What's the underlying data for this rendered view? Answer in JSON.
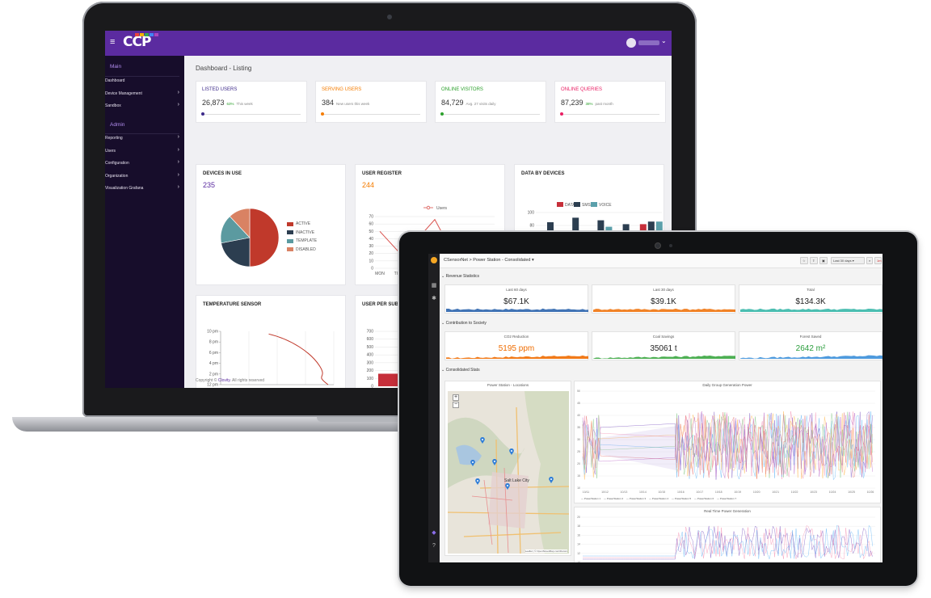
{
  "laptop": {
    "header": {
      "menu_icon": "hamburger-icon",
      "logo_text": "CCP",
      "logo_colors": [
        "#e8453c",
        "#f5b400",
        "#34a853",
        "#4285f4",
        "#ab47bc"
      ]
    },
    "sidebar": {
      "main_label": "Main",
      "admin_label": "Admin",
      "main_items": [
        {
          "label": "Dashboard",
          "chevron": false
        },
        {
          "label": "Device Management",
          "chevron": true
        },
        {
          "label": "Sandbox",
          "chevron": true
        }
      ],
      "admin_items": [
        {
          "label": "Reporting",
          "chevron": true
        },
        {
          "label": "Users",
          "chevron": true
        },
        {
          "label": "Configuration",
          "chevron": true
        },
        {
          "label": "Organization",
          "chevron": true
        },
        {
          "label": "Visualization Grafana",
          "chevron": true
        }
      ]
    },
    "page_title": "Dashboard - Listing",
    "kpis": [
      {
        "label": "LISTED USERS",
        "value": "26,873",
        "pct": "63%",
        "sub": "This week",
        "color": "#3d2a8a",
        "pct_color": "#2ca02c"
      },
      {
        "label": "SERVING USERS",
        "value": "384",
        "pct": "",
        "sub": "New users this week",
        "color": "#f57c00",
        "pct_color": "#f57c00"
      },
      {
        "label": "ONLINE VISITORS",
        "value": "84,729",
        "pct": "",
        "sub": "Avg. 27 visits daily",
        "color": "#2ca02c",
        "pct_color": "#2ca02c"
      },
      {
        "label": "ONLINE QUERIES",
        "value": "87,239",
        "pct": "38%",
        "sub": "past month",
        "color": "#e91e63",
        "pct_color": "#2ca02c"
      }
    ],
    "devices": {
      "title": "DEVICES IN USE",
      "value": "235",
      "value_color": "#5b2ba0",
      "chart_data": {
        "type": "pie",
        "labels": [
          "ACTIVE",
          "INACTIVE",
          "TEMPLATE",
          "DISABLED"
        ],
        "values": [
          50,
          22,
          16,
          12
        ],
        "colors": [
          "#c0392b",
          "#2c3e50",
          "#5b9aa0",
          "#d98263"
        ]
      }
    },
    "user_register": {
      "title": "USER REGISTER",
      "value": "244",
      "value_color": "#f57c00",
      "chart_data": {
        "type": "line",
        "series_name": "Users",
        "categories": [
          "MON",
          "TUE",
          "",
          "",
          "",
          "",
          ""
        ],
        "values": [
          50,
          23,
          38,
          66,
          20,
          10,
          40
        ],
        "ylim": [
          0,
          70
        ],
        "yticks": [
          "70",
          "60",
          "50",
          "40",
          "30",
          "20",
          "10",
          "0"
        ]
      }
    },
    "data_by_devices": {
      "title": "DATA BY DEVICES",
      "chart_data": {
        "type": "bar",
        "series": [
          {
            "name": "DATA",
            "color": "#c62f3a",
            "values": [
              40,
              28,
              65,
              52,
              82
            ]
          },
          {
            "name": "SMS",
            "color": "#2c3e50",
            "values": [
              85,
              92,
              88,
              82,
              86
            ]
          },
          {
            "name": "VOICE",
            "color": "#5ba0ab",
            "values": [
              22,
              65,
              78,
              40,
              86
            ]
          }
        ],
        "ylim": [
          0,
          100
        ],
        "yticks": [
          "100",
          "80",
          "60",
          "40",
          "20"
        ]
      }
    },
    "temperature": {
      "title": "TEMPERATURE SENSOR",
      "chart_data": {
        "type": "line",
        "yticks": [
          "10 pm",
          "8 pm",
          "6 pm",
          "4 pm",
          "2 pm",
          "12 pm"
        ],
        "xticks": [
          "0 °C",
          "10 °C",
          "20 °C",
          "30 °C",
          "40 °C"
        ],
        "color": "#c0392b",
        "values": [
          [
            17,
            9.5
          ],
          [
            25,
            8.5
          ],
          [
            32,
            6
          ],
          [
            35,
            3.5
          ],
          [
            33,
            2
          ],
          [
            38,
            0
          ]
        ]
      }
    },
    "user_suborg": {
      "title": "USER PER SUB-ORG",
      "chart_data": {
        "type": "bar",
        "categories": [
          "Clovity"
        ],
        "values": [
          160
        ],
        "ylim": [
          0,
          700
        ],
        "yticks": [
          "700",
          "600",
          "500",
          "400",
          "300",
          "200",
          "100",
          "0"
        ],
        "color": "#c62f3a"
      }
    },
    "footer": {
      "prefix": "Copyright ©",
      "company": "Clovity.",
      "suffix": "All rights reserved"
    }
  },
  "tablet": {
    "breadcrumb": "CSensorNet > Power Station - Consolidated ▾",
    "time_range": "Last 30 days ▾",
    "refresh": "1m",
    "rows": [
      {
        "title": "Revenue Statistics"
      },
      {
        "title": "Contribution to Society"
      },
      {
        "title": "Consolidated Stats"
      }
    ],
    "revenue": [
      {
        "title": "Last 60 days",
        "value": "$67.1K",
        "color": "#1f5ba8"
      },
      {
        "title": "Last 30 days",
        "value": "$39.1K",
        "color": "#ef6c00"
      },
      {
        "title": "Total",
        "value": "$134.3K",
        "color": "#2bb3a3"
      }
    ],
    "contribution": [
      {
        "title": "CO2 Reduction",
        "value": "5195 ppm",
        "color": "#ef6c00",
        "value_color": "#ef6c00"
      },
      {
        "title": "Coal Savings",
        "value": "35061 t",
        "color": "#3aa640",
        "value_color": "#222222"
      },
      {
        "title": "Forest Saved",
        "value": "2642 m²",
        "color": "#3b8fd9",
        "value_color": "#2a9d3c"
      }
    ],
    "map": {
      "title": "Power Station - Locations",
      "city": "Salt Lake City",
      "attribution": "Leaflet | © OpenStreetMap contributors"
    },
    "daily_chart": {
      "title": "Daily Group Generation Power",
      "yticks": [
        "50",
        "45",
        "40",
        "35",
        "30",
        "25",
        "20",
        "15",
        "10"
      ],
      "xticks": [
        "10/11",
        "10/12",
        "10/13",
        "10/14",
        "10/15",
        "10/16",
        "10/17",
        "10/18",
        "10/19",
        "10/20",
        "10/21",
        "10/22",
        "10/23",
        "10/24",
        "10/25",
        "10/26"
      ],
      "legend": [
        "PowerStation 1",
        "PowerStation 2",
        "PowerStation 3",
        "PowerStation 4",
        "PowerStation 5",
        "PowerStation 6",
        "PowerStation 7"
      ]
    },
    "realtime_chart": {
      "title": "Real Time Power Generation",
      "yticks": [
        "20",
        "18",
        "16",
        "14",
        "12",
        "10"
      ]
    }
  }
}
